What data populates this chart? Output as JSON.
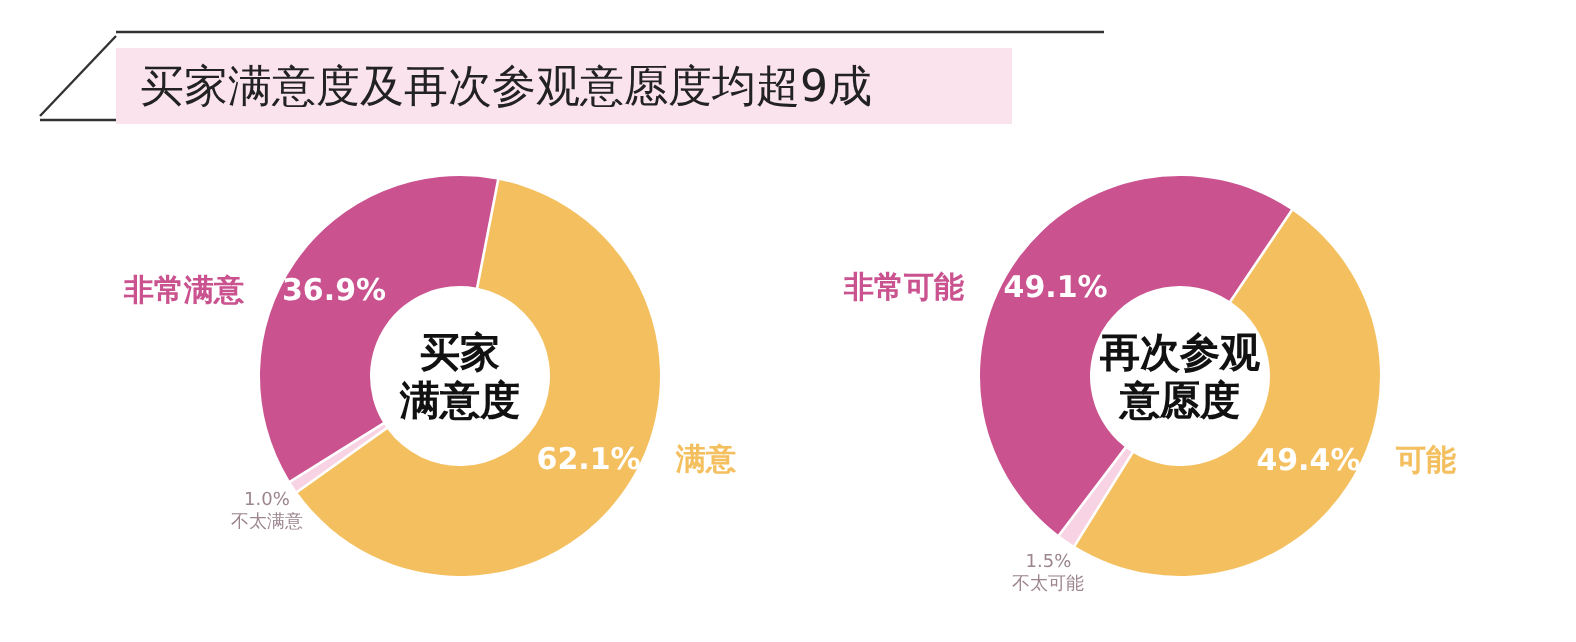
{
  "chart_data": [
    {
      "type": "donut",
      "title": "买家满意度及再次参观意愿度均超9成",
      "subtitle": "买家满意度",
      "categories": [
        "非常满意",
        "满意",
        "不太满意"
      ],
      "values": [
        36.9,
        62.1,
        1.0
      ],
      "colors": [
        "#c9528f",
        "#f4bf5f",
        "#f8d3e3"
      ],
      "value_labels": [
        "36.9%",
        "62.1%",
        "1.0%"
      ]
    },
    {
      "type": "donut",
      "subtitle": "再次参观意愿度",
      "categories": [
        "非常可能",
        "可能",
        "不太可能"
      ],
      "values": [
        49.1,
        49.4,
        1.5
      ],
      "colors": [
        "#c9528f",
        "#f4bf5f",
        "#f8d3e3"
      ],
      "value_labels": [
        "49.1%",
        "49.4%",
        "1.5%"
      ]
    }
  ]
}
